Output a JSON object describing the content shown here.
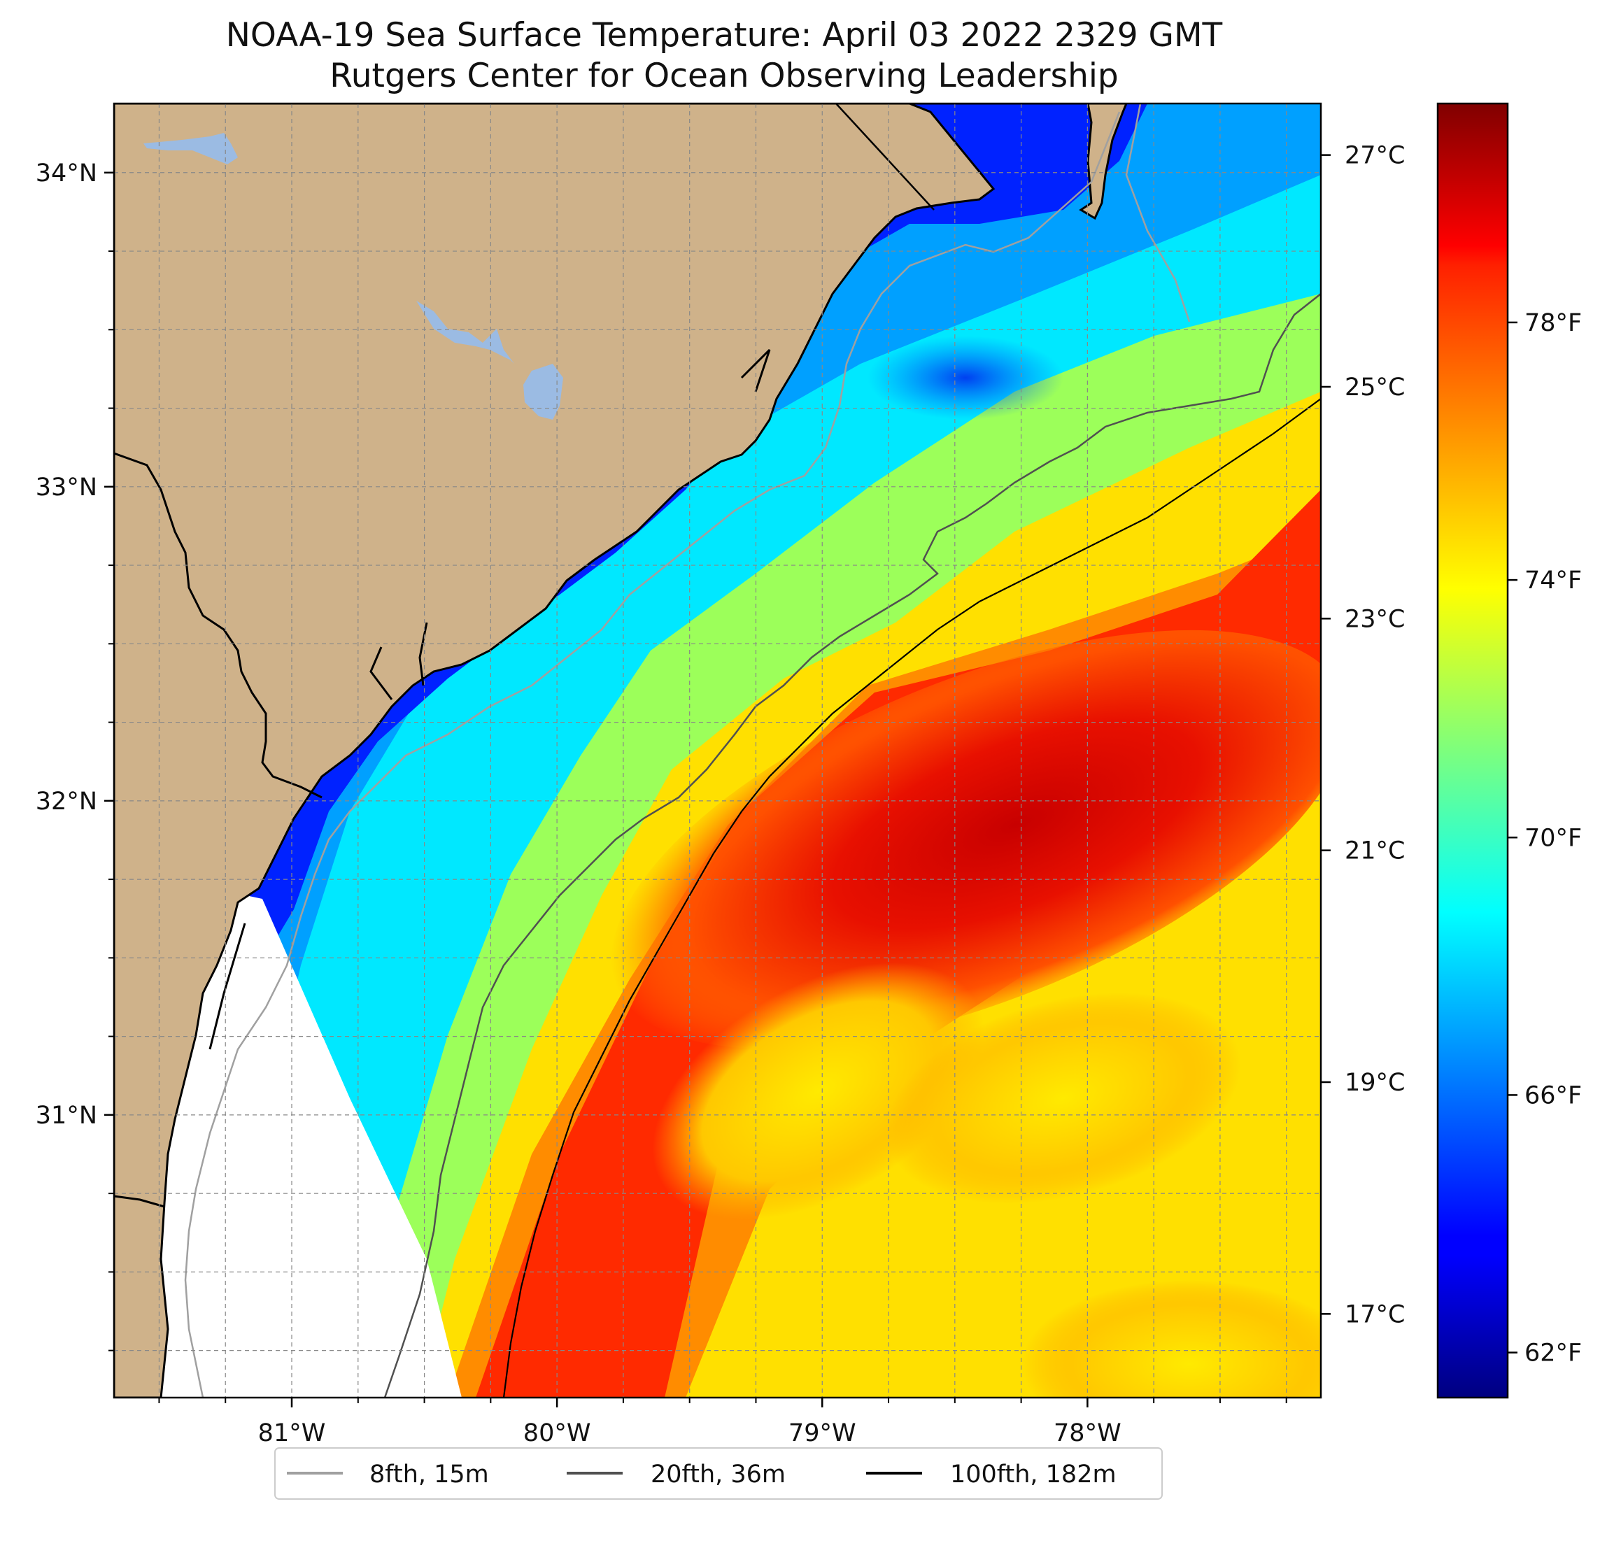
{
  "title": {
    "line1": "NOAA-19 Sea Surface Temperature: April 03 2022 2329 GMT",
    "line2": "Rutgers Center for Ocean Observing Leadership"
  },
  "map": {
    "lon_range": [
      -81.67,
      -77.12
    ],
    "lat_range": [
      30.1,
      34.22
    ],
    "lon_ticks": [
      {
        "value": -81,
        "label": "81°W"
      },
      {
        "value": -80,
        "label": "80°W"
      },
      {
        "value": -79,
        "label": "79°W"
      },
      {
        "value": -78,
        "label": "78°W"
      }
    ],
    "lat_ticks": [
      {
        "value": 34,
        "label": "34°N"
      },
      {
        "value": 33,
        "label": "33°N"
      },
      {
        "value": 32,
        "label": "32°N"
      },
      {
        "value": 31,
        "label": "31°N"
      }
    ],
    "gridlines": true,
    "land_color": "#cfb28a",
    "lake_color": "#9bbbe3",
    "no_data_color": "#ffffff"
  },
  "colorbar": {
    "colormap": "jet",
    "celsius_ticks": [
      {
        "value": 27,
        "label": "27°C"
      },
      {
        "value": 25,
        "label": "25°C"
      },
      {
        "value": 23,
        "label": "23°C"
      },
      {
        "value": 21,
        "label": "21°C"
      },
      {
        "value": 19,
        "label": "19°C"
      },
      {
        "value": 17,
        "label": "17°C"
      }
    ],
    "fahrenheit_ticks": [
      {
        "value": 78,
        "label": "78°F"
      },
      {
        "value": 74,
        "label": "74°F"
      },
      {
        "value": 70,
        "label": "70°F"
      },
      {
        "value": 66,
        "label": "66°F"
      },
      {
        "value": 62,
        "label": "62°F"
      }
    ],
    "range_f": [
      61.3,
      81.4
    ]
  },
  "legend": {
    "placement": "bottom",
    "items": [
      {
        "label": "8fth, 15m",
        "color": "#a0a0a0"
      },
      {
        "label": "20fth, 36m",
        "color": "#505050"
      },
      {
        "label": "100fth, 182m",
        "color": "#000000"
      }
    ]
  }
}
